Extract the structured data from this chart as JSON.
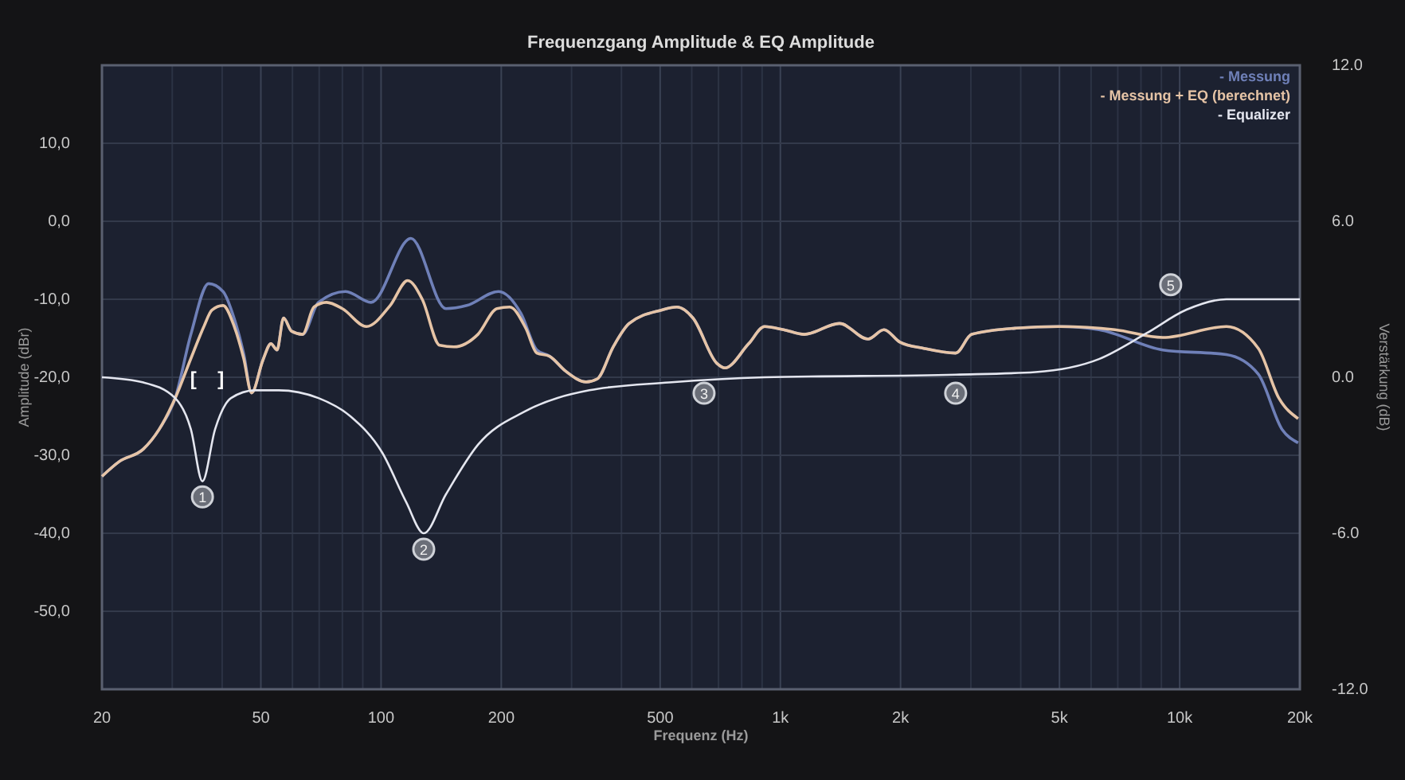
{
  "chart_data": {
    "type": "line",
    "title": "Frequenzgang Amplitude & EQ Amplitude",
    "xlabel": "Frequenz (Hz)",
    "ylabel": "Amplitude (dBr)",
    "y2label": "Verstärkung (dB)",
    "log": "x",
    "grid": true,
    "legend": "top right",
    "marker": "none",
    "line_style": "solid",
    "xlim": [
      20,
      20000
    ],
    "xticks": [
      20,
      {
        "value": 30,
        "label": null
      },
      {
        "value": 40,
        "label": null
      },
      50,
      {
        "value": 60,
        "label": null
      },
      {
        "value": 70,
        "label": null
      },
      {
        "value": 80,
        "label": null
      },
      {
        "value": 90,
        "label": null
      },
      100,
      200,
      {
        "value": 300,
        "label": null
      },
      {
        "value": 400,
        "label": null
      },
      500,
      {
        "value": 600,
        "label": null
      },
      {
        "value": 700,
        "label": null
      },
      {
        "value": 800,
        "label": null
      },
      {
        "value": 900,
        "label": null
      },
      {
        "value": 1000,
        "label": "1k"
      },
      {
        "value": 2000,
        "label": "2k"
      },
      {
        "value": 3000,
        "label": null
      },
      {
        "value": 4000,
        "label": null
      },
      {
        "value": 5000,
        "label": "5k"
      },
      {
        "value": 6000,
        "label": null
      },
      {
        "value": 7000,
        "label": null
      },
      {
        "value": 8000,
        "label": null
      },
      {
        "value": 9000,
        "label": null
      },
      {
        "value": 10000,
        "label": "10k"
      },
      {
        "value": 20000,
        "label": "20k"
      }
    ],
    "ylim": [
      -60,
      20
    ],
    "yticks": [
      {
        "value": -50,
        "label": "-50,0"
      },
      {
        "value": -40,
        "label": "-40,0"
      },
      {
        "value": -30,
        "label": "-30,0"
      },
      {
        "value": -20,
        "label": "-20,0"
      },
      {
        "value": -10,
        "label": "-10,0"
      },
      {
        "value": 0,
        "label": "0,0"
      },
      {
        "value": 10,
        "label": "10,0"
      }
    ],
    "y2lim": [
      -12,
      12
    ],
    "y2ticks": [
      {
        "value": -12,
        "label": "-12.0"
      },
      {
        "value": -6,
        "label": "-6.0"
      },
      {
        "value": 0,
        "label": "0.0"
      },
      {
        "value": 6,
        "label": "6.0"
      },
      {
        "value": 12,
        "label": "12.0"
      }
    ],
    "series": [
      {
        "name": "- Messung",
        "color": "#6f80b8",
        "x": [
          20,
          22.1,
          25.4,
          27.8,
          30.5,
          33.4,
          37,
          40.2,
          42.9,
          45.3,
          47.4,
          50.6,
          53,
          54.9,
          57,
          59.7,
          63.6,
          69.7,
          81.5,
          94.4,
          118.8,
          145.4,
          163.9,
          196.9,
          224,
          245.6,
          264.2,
          289.7,
          326.4,
          348.1,
          381.4,
          418.1,
          502.5,
          551,
          604,
          693,
          726,
          833,
          913,
          1019,
          1149,
          1406,
          1658,
          1818,
          1993,
          2288,
          2748,
          3013,
          3897,
          4995,
          6281,
          9073,
          13095,
          15740,
          18060,
          19800
        ],
        "values": [
          -32.7,
          -30.8,
          -29.2,
          -26.7,
          -22.7,
          -14.5,
          -8.0,
          -9.0,
          -12.5,
          -17.0,
          -22.0,
          -17.8,
          -15.7,
          -16.5,
          -12.4,
          -14.1,
          -14.5,
          -10.4,
          -9.0,
          -10.4,
          -2.2,
          -11.2,
          -10.8,
          -9.0,
          -11.8,
          -16.5,
          -17.3,
          -19.2,
          -20.6,
          -20.2,
          -16.1,
          -13.1,
          -11.4,
          -11.0,
          -12.4,
          -18.2,
          -18.8,
          -15.7,
          -13.5,
          -13.9,
          -14.5,
          -13.1,
          -15.1,
          -13.9,
          -15.5,
          -16.3,
          -16.9,
          -14.5,
          -13.7,
          -13.5,
          -13.9,
          -16.5,
          -17.1,
          -19.6,
          -26.7,
          -28.4
        ]
      },
      {
        "name": "- Messung + EQ (berechnet)",
        "color": "#e6c4a6",
        "x": [
          20,
          22.1,
          25.4,
          27.8,
          30.5,
          33.4,
          36,
          37.7,
          40.2,
          42.9,
          45.3,
          47.4,
          50.6,
          53,
          54.9,
          57,
          59.7,
          63.6,
          67.9,
          73,
          80,
          91.9,
          105.4,
          116.6,
          126.8,
          140.2,
          152.2,
          174.8,
          195.1,
          210,
          230.3,
          245.6,
          264.2,
          289.7,
          326.4,
          348.1,
          381.4,
          418.1,
          502.5,
          551,
          604,
          693,
          726,
          833,
          913,
          1019,
          1149,
          1406,
          1658,
          1818,
          1993,
          2288,
          2748,
          3013,
          3897,
          4995,
          6886,
          9073,
          13095,
          15740,
          17730,
          19800
        ],
        "values": [
          -32.7,
          -30.8,
          -29.2,
          -26.7,
          -22.7,
          -17.6,
          -13.5,
          -11.4,
          -10.8,
          -13.5,
          -17.6,
          -22.0,
          -17.8,
          -15.7,
          -16.5,
          -12.4,
          -14.1,
          -14.5,
          -11.0,
          -10.4,
          -11.2,
          -13.5,
          -10.8,
          -7.6,
          -10.0,
          -15.9,
          -16.1,
          -14.5,
          -11.2,
          -11.0,
          -13.7,
          -16.9,
          -17.3,
          -19.2,
          -20.6,
          -20.2,
          -16.1,
          -13.1,
          -11.4,
          -11.0,
          -12.4,
          -18.2,
          -18.8,
          -15.7,
          -13.5,
          -13.9,
          -14.5,
          -13.1,
          -15.1,
          -13.9,
          -15.5,
          -16.3,
          -16.9,
          -14.5,
          -13.7,
          -13.5,
          -13.9,
          -14.9,
          -13.5,
          -16.3,
          -22.7,
          -25.3
        ]
      },
      {
        "name": "- Equalizer",
        "color": "#e4e6ef",
        "axis": "y2",
        "x": [
          20,
          25.4,
          30.5,
          33.4,
          35.7,
          38.4,
          42.1,
          48.3,
          55.4,
          69.7,
          83.8,
          100.7,
          115.6,
          127.9,
          145.4,
          174.8,
          230.3,
          332.5,
          526,
          913,
          2748,
          4352,
          6281,
          8275,
          10410,
          13095,
          20000
        ],
        "values": [
          0,
          -0.2,
          -0.8,
          -2.0,
          -4.0,
          -2.0,
          -0.8,
          -0.5,
          -0.5,
          -0.8,
          -1.5,
          -2.9,
          -4.8,
          -6.0,
          -4.5,
          -2.6,
          -1.3,
          -0.5,
          -0.2,
          0,
          0.1,
          0.2,
          0.7,
          1.7,
          2.6,
          3.0,
          3.0
        ]
      }
    ],
    "annotations": [
      {
        "text": "1",
        "x": 35.7,
        "y": -33.3
      },
      {
        "text": "2",
        "x": 127.9,
        "y": -40
      },
      {
        "text": "3",
        "x": 644,
        "y": -20
      },
      {
        "text": "4",
        "x": 2748,
        "y": -20
      },
      {
        "text": "5",
        "x": 9497,
        "y": -11.4
      },
      "[    ]"
    ]
  }
}
